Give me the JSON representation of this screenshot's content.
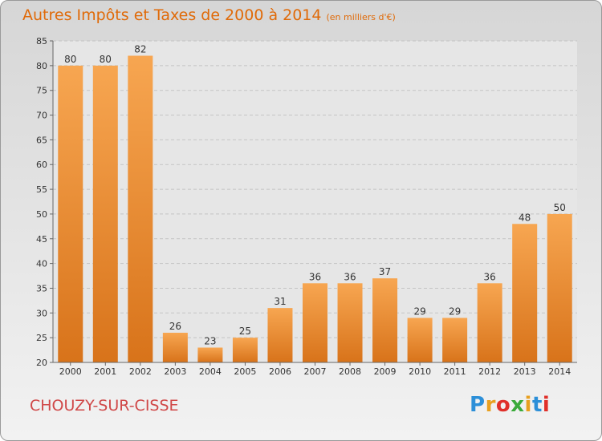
{
  "chart_data": {
    "type": "bar",
    "title": "Autres Impôts et Taxes de 2000 à 2014",
    "unit_note": "(en milliers d'€)",
    "categories": [
      "2000",
      "2001",
      "2002",
      "2003",
      "2004",
      "2005",
      "2006",
      "2007",
      "2008",
      "2009",
      "2010",
      "2011",
      "2012",
      "2013",
      "2014"
    ],
    "values": [
      80,
      80,
      82,
      26,
      23,
      25,
      31,
      36,
      36,
      37,
      29,
      29,
      36,
      48,
      50
    ],
    "ylim": [
      20,
      85
    ],
    "yticks": [
      20,
      25,
      30,
      35,
      40,
      45,
      50,
      55,
      60,
      65,
      70,
      75,
      80,
      85
    ],
    "grid": true,
    "bar_color": "#f0922e"
  },
  "commune": "CHOUZY-SUR-CISSE",
  "logo": {
    "letters": [
      "P",
      "r",
      "o",
      "x",
      "i",
      "t",
      "i"
    ],
    "colors": [
      "#2c8fd8",
      "#e8a020",
      "#e0302a",
      "#3aaa3a",
      "#e8a020",
      "#2c8fd8",
      "#e0302a"
    ]
  }
}
